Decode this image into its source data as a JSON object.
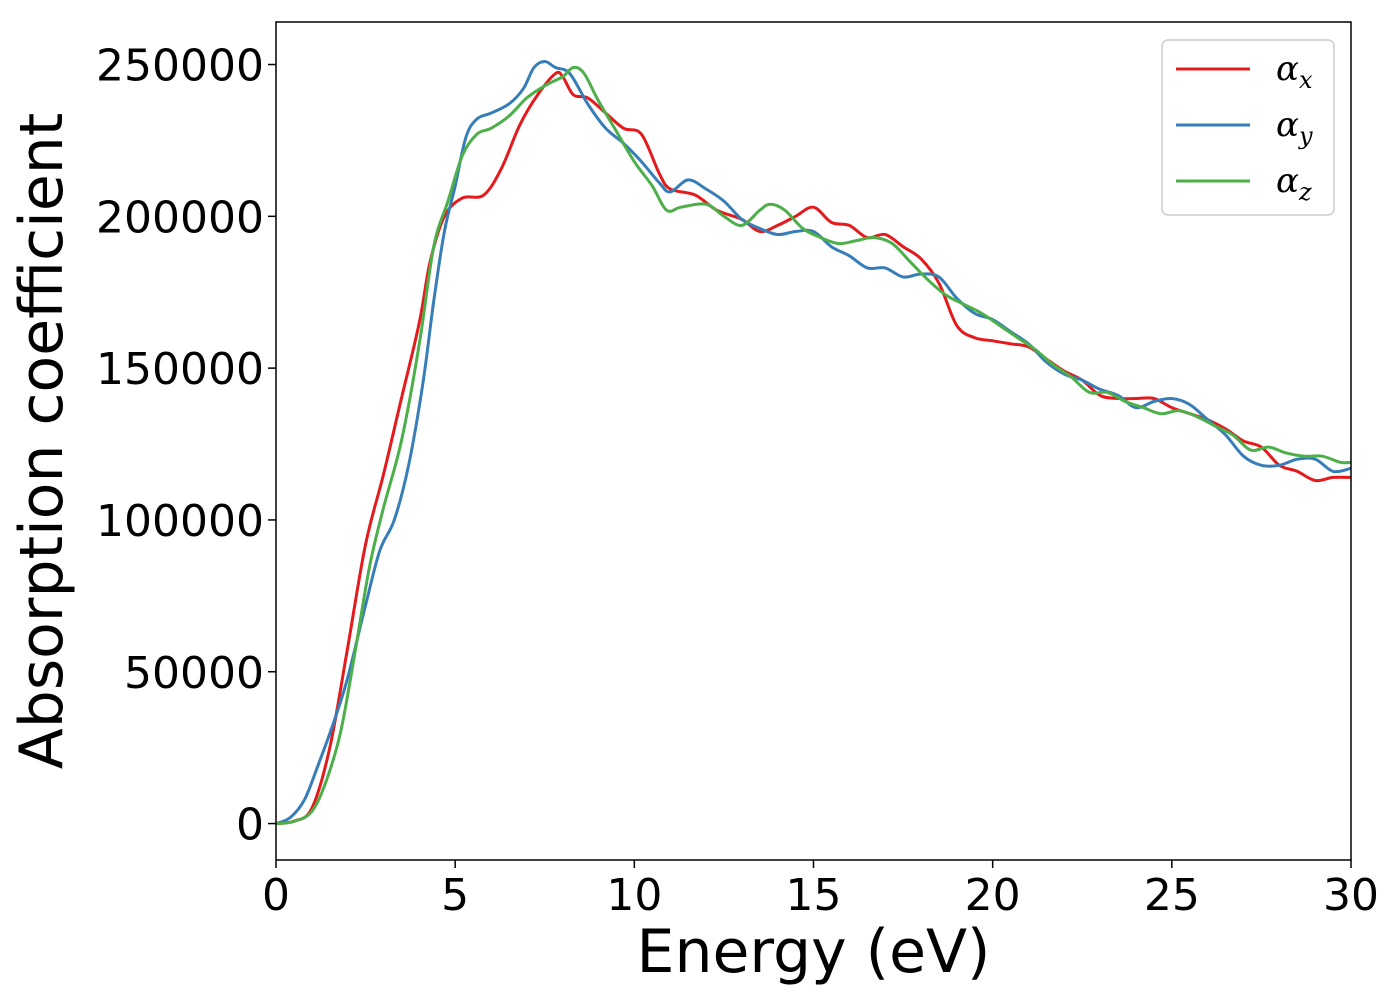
{
  "chart_data": {
    "type": "line",
    "title": "",
    "xlabel": "Energy (eV)",
    "ylabel": "Absorption coefficient",
    "xlim": [
      0,
      30
    ],
    "ylim": [
      -12000,
      264000
    ],
    "xticks": [
      0,
      5,
      10,
      15,
      20,
      25,
      30
    ],
    "yticks": [
      0,
      50000,
      100000,
      150000,
      200000,
      250000
    ],
    "grid": false,
    "legend_position": "top-right",
    "series": [
      {
        "name": "αx",
        "symbol": "α",
        "subscript": "x",
        "color": "#e41a1c",
        "points": [
          [
            0,
            0
          ],
          [
            0.5,
            800
          ],
          [
            1.0,
            5000
          ],
          [
            1.5,
            25000
          ],
          [
            2.0,
            58000
          ],
          [
            2.5,
            92000
          ],
          [
            3.0,
            115000
          ],
          [
            3.5,
            140000
          ],
          [
            4.0,
            165000
          ],
          [
            4.3,
            185000
          ],
          [
            4.7,
            200000
          ],
          [
            5.2,
            206000
          ],
          [
            5.8,
            207000
          ],
          [
            6.3,
            216000
          ],
          [
            6.8,
            230000
          ],
          [
            7.3,
            240000
          ],
          [
            7.8,
            247000
          ],
          [
            8.0,
            246000
          ],
          [
            8.3,
            240000
          ],
          [
            8.7,
            239000
          ],
          [
            9.2,
            234000
          ],
          [
            9.7,
            229000
          ],
          [
            10.2,
            227000
          ],
          [
            10.7,
            214000
          ],
          [
            11.0,
            209000
          ],
          [
            11.7,
            207000
          ],
          [
            12.3,
            202000
          ],
          [
            13.0,
            199000
          ],
          [
            13.5,
            195000
          ],
          [
            14.0,
            197000
          ],
          [
            14.5,
            200000
          ],
          [
            15.0,
            203000
          ],
          [
            15.5,
            198000
          ],
          [
            16.0,
            197000
          ],
          [
            16.5,
            193000
          ],
          [
            17.0,
            194000
          ],
          [
            17.5,
            190000
          ],
          [
            18.0,
            186000
          ],
          [
            18.5,
            178000
          ],
          [
            19.0,
            164000
          ],
          [
            19.5,
            160000
          ],
          [
            20.0,
            159000
          ],
          [
            20.5,
            158000
          ],
          [
            21.0,
            157000
          ],
          [
            21.5,
            153000
          ],
          [
            22.0,
            149000
          ],
          [
            22.5,
            146000
          ],
          [
            23.0,
            141000
          ],
          [
            23.5,
            140000
          ],
          [
            24.0,
            140000
          ],
          [
            24.5,
            140000
          ],
          [
            25.0,
            137000
          ],
          [
            25.5,
            135000
          ],
          [
            26.0,
            133000
          ],
          [
            26.5,
            130000
          ],
          [
            27.0,
            126000
          ],
          [
            27.5,
            124000
          ],
          [
            28.0,
            118000
          ],
          [
            28.5,
            116000
          ],
          [
            29.0,
            113000
          ],
          [
            29.5,
            114000
          ],
          [
            30.0,
            114000
          ]
        ]
      },
      {
        "name": "αy",
        "symbol": "α",
        "subscript": "y",
        "color": "#377eb8",
        "points": [
          [
            0,
            0
          ],
          [
            0.4,
            2000
          ],
          [
            0.8,
            8000
          ],
          [
            1.2,
            20000
          ],
          [
            1.6,
            33000
          ],
          [
            2.0,
            48000
          ],
          [
            2.5,
            72000
          ],
          [
            2.9,
            90000
          ],
          [
            3.3,
            100000
          ],
          [
            3.7,
            118000
          ],
          [
            4.1,
            145000
          ],
          [
            4.4,
            172000
          ],
          [
            4.7,
            195000
          ],
          [
            5.0,
            210000
          ],
          [
            5.3,
            226000
          ],
          [
            5.6,
            232000
          ],
          [
            6.0,
            234000
          ],
          [
            6.5,
            237000
          ],
          [
            6.9,
            242000
          ],
          [
            7.2,
            249000
          ],
          [
            7.5,
            251000
          ],
          [
            7.8,
            249000
          ],
          [
            8.2,
            247000
          ],
          [
            8.7,
            237000
          ],
          [
            9.2,
            229000
          ],
          [
            9.7,
            224000
          ],
          [
            10.2,
            218000
          ],
          [
            10.7,
            211000
          ],
          [
            11.0,
            208000
          ],
          [
            11.5,
            212000
          ],
          [
            12.0,
            209000
          ],
          [
            12.5,
            205000
          ],
          [
            13.0,
            199000
          ],
          [
            13.5,
            196000
          ],
          [
            14.0,
            194000
          ],
          [
            14.5,
            195000
          ],
          [
            15.0,
            195000
          ],
          [
            15.5,
            190000
          ],
          [
            16.0,
            187000
          ],
          [
            16.5,
            183000
          ],
          [
            17.0,
            183000
          ],
          [
            17.5,
            180000
          ],
          [
            18.0,
            181000
          ],
          [
            18.5,
            180000
          ],
          [
            19.0,
            173000
          ],
          [
            19.5,
            168000
          ],
          [
            20.0,
            166000
          ],
          [
            20.5,
            162000
          ],
          [
            21.0,
            158000
          ],
          [
            21.5,
            152000
          ],
          [
            22.0,
            148000
          ],
          [
            22.5,
            146000
          ],
          [
            23.0,
            143000
          ],
          [
            23.5,
            141000
          ],
          [
            24.0,
            137000
          ],
          [
            24.5,
            139000
          ],
          [
            25.0,
            140000
          ],
          [
            25.5,
            138000
          ],
          [
            26.0,
            133000
          ],
          [
            26.5,
            128000
          ],
          [
            27.0,
            121000
          ],
          [
            27.5,
            118000
          ],
          [
            28.0,
            118000
          ],
          [
            28.5,
            120000
          ],
          [
            29.0,
            120000
          ],
          [
            29.5,
            116000
          ],
          [
            30.0,
            117000
          ]
        ]
      },
      {
        "name": "αz",
        "symbol": "α",
        "subscript": "z",
        "color": "#4daf4a",
        "points": [
          [
            0,
            0
          ],
          [
            0.5,
            700
          ],
          [
            1.0,
            4000
          ],
          [
            1.4,
            14000
          ],
          [
            1.8,
            30000
          ],
          [
            2.2,
            56000
          ],
          [
            2.6,
            84000
          ],
          [
            3.0,
            104000
          ],
          [
            3.5,
            126000
          ],
          [
            4.0,
            158000
          ],
          [
            4.4,
            190000
          ],
          [
            4.8,
            205000
          ],
          [
            5.2,
            220000
          ],
          [
            5.6,
            227000
          ],
          [
            6.0,
            229000
          ],
          [
            6.5,
            233000
          ],
          [
            7.0,
            239000
          ],
          [
            7.5,
            243000
          ],
          [
            8.0,
            246000
          ],
          [
            8.3,
            249000
          ],
          [
            8.6,
            247000
          ],
          [
            9.0,
            238000
          ],
          [
            9.5,
            228000
          ],
          [
            10.0,
            218000
          ],
          [
            10.5,
            210000
          ],
          [
            10.9,
            202000
          ],
          [
            11.3,
            203000
          ],
          [
            12.0,
            204000
          ],
          [
            12.5,
            200000
          ],
          [
            13.0,
            197000
          ],
          [
            13.5,
            202000
          ],
          [
            13.8,
            204000
          ],
          [
            14.2,
            202000
          ],
          [
            14.7,
            196000
          ],
          [
            15.2,
            193000
          ],
          [
            15.7,
            191000
          ],
          [
            16.2,
            192000
          ],
          [
            16.7,
            193000
          ],
          [
            17.2,
            191000
          ],
          [
            17.7,
            185000
          ],
          [
            18.2,
            179000
          ],
          [
            18.7,
            174000
          ],
          [
            19.2,
            171000
          ],
          [
            19.7,
            168000
          ],
          [
            20.2,
            164000
          ],
          [
            20.7,
            160000
          ],
          [
            21.2,
            156000
          ],
          [
            21.7,
            151000
          ],
          [
            22.2,
            147000
          ],
          [
            22.7,
            142000
          ],
          [
            23.2,
            142000
          ],
          [
            23.7,
            139000
          ],
          [
            24.2,
            137000
          ],
          [
            24.7,
            135000
          ],
          [
            25.2,
            136000
          ],
          [
            25.7,
            134000
          ],
          [
            26.2,
            131000
          ],
          [
            26.7,
            128000
          ],
          [
            27.2,
            123000
          ],
          [
            27.7,
            124000
          ],
          [
            28.2,
            122000
          ],
          [
            28.7,
            121000
          ],
          [
            29.2,
            121000
          ],
          [
            29.7,
            119000
          ],
          [
            30.0,
            119000
          ]
        ]
      }
    ]
  }
}
